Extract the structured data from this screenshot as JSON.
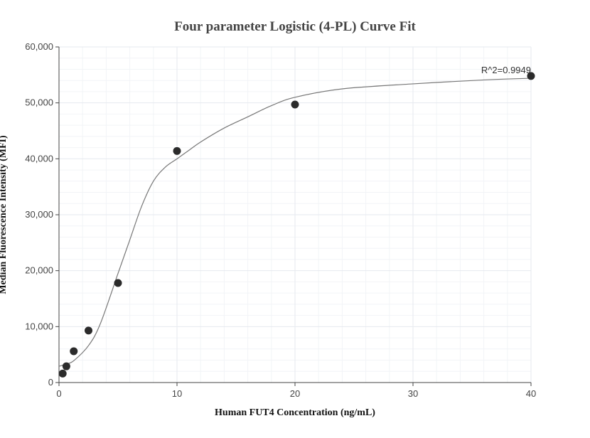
{
  "chart_data": {
    "type": "scatter",
    "title": "Four parameter Logistic (4-PL) Curve Fit",
    "xlabel": "Human FUT4 Concentration (ng/mL)",
    "ylabel": "Median Fluorescence Intensity (MFI)",
    "xlim": [
      0,
      40
    ],
    "ylim": [
      0,
      60000
    ],
    "x_ticks": [
      0,
      10,
      20,
      30,
      40
    ],
    "x_tick_labels": [
      "0",
      "10",
      "20",
      "30",
      "40"
    ],
    "y_ticks": [
      0,
      10000,
      20000,
      30000,
      40000,
      50000,
      60000
    ],
    "y_tick_labels": [
      "0",
      "10,000",
      "20,000",
      "30,000",
      "40,000",
      "50,000",
      "60,000"
    ],
    "grid": true,
    "points": [
      {
        "x": 0.3125,
        "y": 1600
      },
      {
        "x": 0.625,
        "y": 2900
      },
      {
        "x": 1.25,
        "y": 5600
      },
      {
        "x": 2.5,
        "y": 9300
      },
      {
        "x": 5,
        "y": 17800
      },
      {
        "x": 10,
        "y": 41400
      },
      {
        "x": 20,
        "y": 49700
      },
      {
        "x": 40,
        "y": 54800
      }
    ],
    "fit_curve": {
      "model": "4PL",
      "x": [
        0,
        0.3125,
        0.625,
        1.25,
        2.5,
        3.5,
        5,
        6,
        7,
        8,
        9,
        10,
        11,
        12,
        14,
        16,
        18,
        20,
        24,
        30,
        36,
        40
      ],
      "y": [
        2900,
        3100,
        3300,
        3900,
        6600,
        10500,
        19500,
        25500,
        31500,
        36000,
        38500,
        40000,
        41500,
        43000,
        45500,
        47500,
        49500,
        51000,
        52500,
        53400,
        54100,
        54400
      ]
    },
    "annotation": "R^2=0.9949",
    "colors": {
      "points": "#2b2b2b",
      "curve": "#777777",
      "grid": "#e6e9ef",
      "grid_minor": "#f2f4f7",
      "axis": "#444444"
    }
  }
}
